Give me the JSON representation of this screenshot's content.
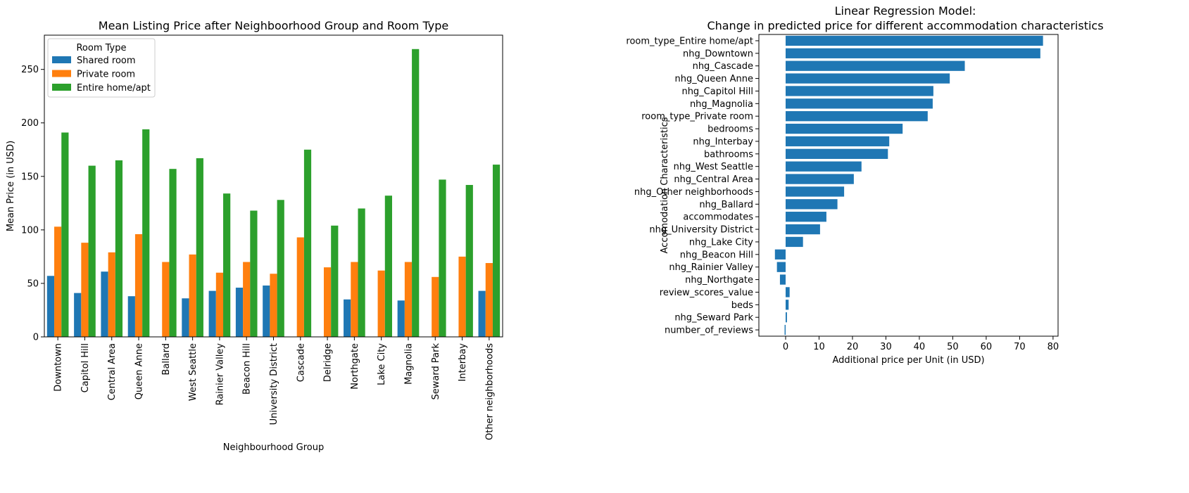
{
  "chart_data": [
    {
      "type": "bar",
      "title": "Mean Listing Price after Neighboorhood Group and Room Type",
      "xlabel": "Neighbourhood Group",
      "ylabel": "Mean Price (in USD)",
      "ylim": [
        0,
        282
      ],
      "yticks": [
        0,
        50,
        100,
        150,
        200,
        250
      ],
      "grid": false,
      "legend": {
        "title": "Room Type",
        "placement": "top-left"
      },
      "categories": [
        "Downtown",
        "Capitol Hill",
        "Central Area",
        "Queen Anne",
        "Ballard",
        "West Seattle",
        "Rainier Valley",
        "Beacon Hill",
        "University District",
        "Cascade",
        "Delridge",
        "Northgate",
        "Lake City",
        "Magnolia",
        "Seward Park",
        "Interbay",
        "Other neighborhoods"
      ],
      "series": [
        {
          "name": "Shared room",
          "color": "#1f77b4",
          "values": [
            57,
            41,
            61,
            38,
            null,
            36,
            43,
            46,
            48,
            null,
            null,
            35,
            null,
            34,
            null,
            null,
            43
          ]
        },
        {
          "name": "Private room",
          "color": "#ff7f0e",
          "values": [
            103,
            88,
            79,
            96,
            70,
            77,
            60,
            70,
            59,
            93,
            65,
            70,
            62,
            70,
            56,
            75,
            69
          ]
        },
        {
          "name": "Entire home/apt",
          "color": "#2ca02c",
          "values": [
            191,
            160,
            165,
            194,
            157,
            167,
            134,
            118,
            128,
            175,
            104,
            120,
            132,
            269,
            147,
            142,
            161
          ]
        }
      ]
    },
    {
      "type": "bar",
      "orientation": "horizontal",
      "title": "Linear Regression Model:\nChange in predicted price for different accommodation characteristics",
      "title_lines": [
        "Linear Regression Model:",
        "Change in predicted price for different accommodation characteristics"
      ],
      "xlabel": "Additional price per Unit (in USD)",
      "ylabel": "Accomodation Characteristics",
      "xlim": [
        -8,
        81.5
      ],
      "xticks": [
        0,
        10,
        20,
        30,
        40,
        50,
        60,
        70,
        80
      ],
      "grid": false,
      "color": "#1f77b4",
      "categories": [
        "room_type_Entire home/apt",
        "nhg_Downtown",
        "nhg_Cascade",
        "nhg_Queen Anne",
        "nhg_Capitol Hill",
        "nhg_Magnolia",
        "room_type_Private room",
        "bedrooms",
        "nhg_Interbay",
        "bathrooms",
        "nhg_West Seattle",
        "nhg_Central Area",
        "nhg_Other neighborhoods",
        "nhg_Ballard",
        "accommodates",
        "nhg_University District",
        "nhg_Lake City",
        "nhg_Beacon Hill",
        "nhg_Rainier Valley",
        "nhg_Northgate",
        "review_scores_value",
        "beds",
        "nhg_Seward Park",
        "number_of_reviews"
      ],
      "values": [
        77.0,
        76.2,
        53.6,
        49.1,
        44.2,
        44.0,
        42.5,
        35.0,
        31.0,
        30.6,
        22.7,
        20.4,
        17.5,
        15.5,
        12.2,
        10.3,
        5.2,
        -3.2,
        -2.6,
        -1.7,
        1.2,
        0.9,
        0.4,
        -0.3
      ]
    }
  ]
}
